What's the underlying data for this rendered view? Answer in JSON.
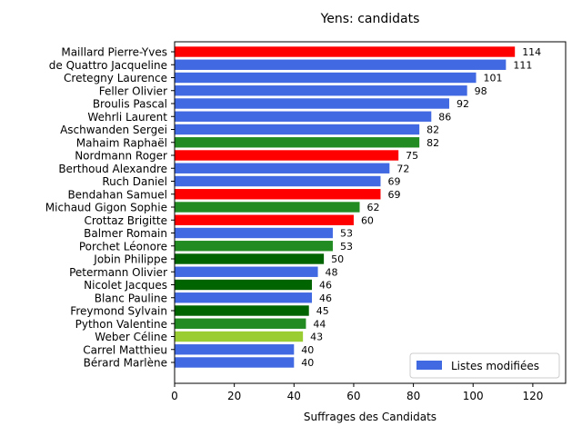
{
  "chart_data": {
    "type": "bar",
    "orientation": "horizontal",
    "title": "Yens: candidats",
    "xlabel": "Suffrages des Candidats",
    "ylabel": "",
    "xlim": [
      0,
      131
    ],
    "xticks": [
      0,
      20,
      40,
      60,
      80,
      100,
      120
    ],
    "grid": false,
    "legend": {
      "placement": "lower-right",
      "entries": [
        {
          "label": "Listes modifiées",
          "color": "#4169e1"
        }
      ]
    },
    "categories": [
      "Maillard Pierre-Yves",
      "de Quattro Jacqueline",
      "Cretegny Laurence",
      "Feller Olivier",
      "Broulis Pascal",
      "Wehrli Laurent",
      "Aschwanden Sergei",
      "Mahaim Raphaël",
      "Nordmann Roger",
      "Berthoud Alexandre",
      "Ruch Daniel",
      "Bendahan Samuel",
      "Michaud Gigon Sophie",
      "Crottaz Brigitte",
      "Balmer Romain",
      "Porchet Léonore",
      "Jobin Philippe",
      "Petermann Olivier",
      "Nicolet Jacques",
      "Blanc Pauline",
      "Freymond Sylvain",
      "Python Valentine",
      "Weber Céline",
      "Carrel Matthieu",
      "Bérard Marlène"
    ],
    "values": [
      114,
      111,
      101,
      98,
      92,
      86,
      82,
      82,
      75,
      72,
      69,
      69,
      62,
      60,
      53,
      53,
      50,
      48,
      46,
      46,
      45,
      44,
      43,
      40,
      40
    ],
    "value_labels": [
      "114",
      "111",
      "101",
      "98",
      "92",
      "86",
      "82",
      "82",
      "75",
      "72",
      "69",
      "69",
      "62",
      "60",
      "53",
      "53",
      "50",
      "48",
      "46",
      "46",
      "45",
      "44",
      "43",
      "40",
      "40"
    ],
    "colors": [
      "#ff0000",
      "#4169e1",
      "#4169e1",
      "#4169e1",
      "#4169e1",
      "#4169e1",
      "#4169e1",
      "#228b22",
      "#ff0000",
      "#4169e1",
      "#4169e1",
      "#ff0000",
      "#228b22",
      "#ff0000",
      "#4169e1",
      "#228b22",
      "#006400",
      "#4169e1",
      "#006400",
      "#4169e1",
      "#006400",
      "#228b22",
      "#9acd32",
      "#4169e1",
      "#4169e1"
    ]
  }
}
